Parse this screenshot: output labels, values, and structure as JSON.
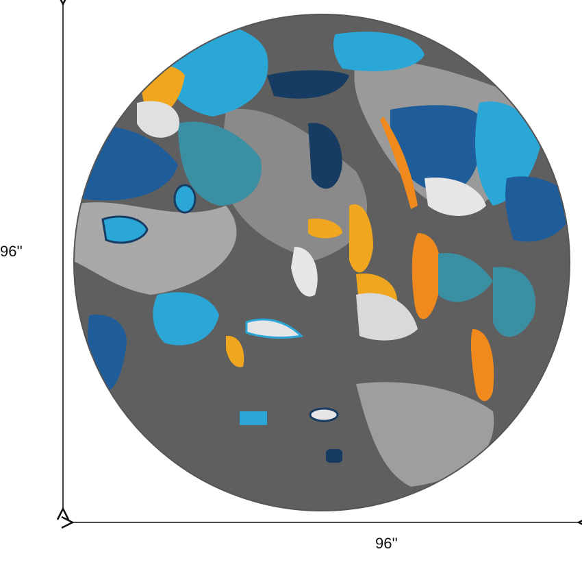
{
  "product": {
    "shape": "round rug",
    "height_label": "96''",
    "width_label": "96''"
  },
  "colors": {
    "base_gray": "#5f5f5f",
    "light_gray": "#b5b5b5",
    "white": "#e6e6e6",
    "sky_blue": "#2aa7d6",
    "royal_blue": "#1f5d9a",
    "navy": "#173c63",
    "teal": "#3a8fa2",
    "orange": "#f08a1c",
    "gold": "#f0a61e"
  }
}
